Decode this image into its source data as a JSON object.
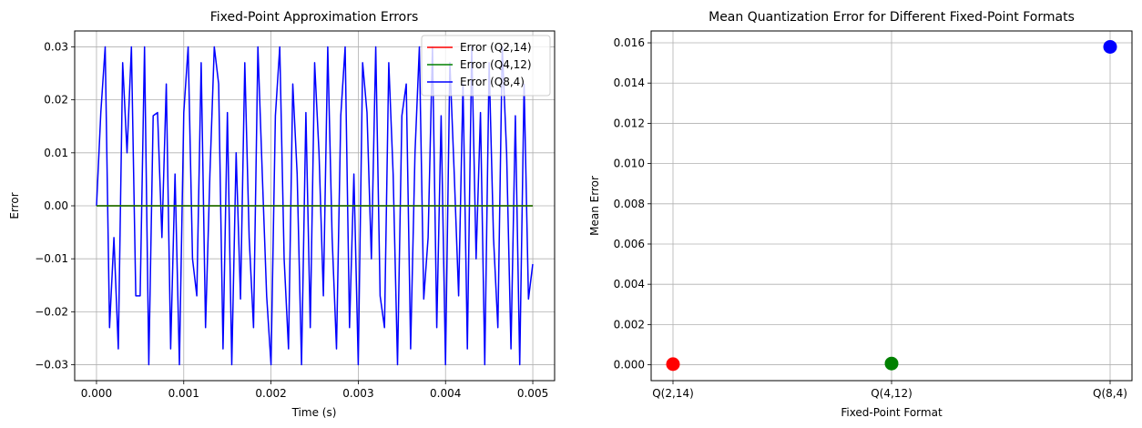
{
  "chart_data": [
    {
      "type": "line",
      "title": "Fixed-Point Approximation Errors",
      "xlabel": "Time (s)",
      "ylabel": "Error",
      "xlim": [
        -0.00025,
        0.00525
      ],
      "ylim": [
        -0.033,
        0.033
      ],
      "xticks": [
        "0.000",
        "0.001",
        "0.002",
        "0.003",
        "0.004",
        "0.005"
      ],
      "xtick_values": [
        0,
        0.001,
        0.002,
        0.003,
        0.004,
        0.005
      ],
      "yticks": [
        "−0.03",
        "−0.02",
        "−0.01",
        "0.00",
        "0.01",
        "0.02",
        "0.03"
      ],
      "ytick_values": [
        -0.03,
        -0.02,
        -0.01,
        0,
        0.01,
        0.02,
        0.03
      ],
      "grid": true,
      "legend_position": "top-right",
      "series": [
        {
          "name": "Error (Q2,14)",
          "color": "#ff0000",
          "x": [
            0,
            0.005
          ],
          "y": [
            0,
            0
          ]
        },
        {
          "name": "Error (Q4,12)",
          "color": "#008000",
          "x": [
            0,
            0.005
          ],
          "y": [
            0,
            0
          ]
        },
        {
          "name": "Error (Q8,4)",
          "color": "#0000ff",
          "x": [
            0,
            5e-05,
            0.0001,
            0.00015,
            0.0002,
            0.00025,
            0.0003,
            0.00035,
            0.0004,
            0.00045,
            0.0005,
            0.00055,
            0.0006,
            0.00065,
            0.0007,
            0.00075,
            0.0008,
            0.00085,
            0.0009,
            0.00095,
            0.001,
            0.00105,
            0.0011,
            0.00115,
            0.0012,
            0.00125,
            0.0013,
            0.00135,
            0.0014,
            0.00145,
            0.0015,
            0.00155,
            0.0016,
            0.00165,
            0.0017,
            0.00175,
            0.0018,
            0.00185,
            0.0019,
            0.00195,
            0.002,
            0.00205,
            0.0021,
            0.00215,
            0.0022,
            0.00225,
            0.0023,
            0.00235,
            0.0024,
            0.00245,
            0.0025,
            0.00255,
            0.0026,
            0.00265,
            0.0027,
            0.00275,
            0.0028,
            0.00285,
            0.0029,
            0.00295,
            0.003,
            0.00305,
            0.0031,
            0.00315,
            0.0032,
            0.00325,
            0.0033,
            0.00335,
            0.0034,
            0.00345,
            0.0035,
            0.00355,
            0.0036,
            0.00365,
            0.0037,
            0.00375,
            0.0038,
            0.00385,
            0.0039,
            0.00395,
            0.004,
            0.00405,
            0.0041,
            0.00415,
            0.0042,
            0.00425,
            0.0043,
            0.00435,
            0.0044,
            0.00445,
            0.0045,
            0.00455,
            0.0046,
            0.00465,
            0.0047,
            0.00475,
            0.0048,
            0.00485,
            0.0049,
            0.00495,
            0.005
          ],
          "y": [
            0,
            0.0176,
            0.03,
            -0.023,
            -0.006,
            -0.027,
            0.027,
            0.01,
            0.03,
            -0.017,
            -0.017,
            0.03,
            -0.03,
            0.017,
            0.0176,
            -0.006,
            0.023,
            -0.027,
            0.006,
            -0.03,
            0.0176,
            0.03,
            -0.01,
            -0.017,
            0.027,
            -0.023,
            0.006,
            0.03,
            0.023,
            -0.027,
            0.0176,
            -0.03,
            0.01,
            -0.0176,
            0.027,
            -0.006,
            -0.023,
            0.03,
            0.006,
            -0.017,
            -0.03,
            0.017,
            0.03,
            -0.01,
            -0.027,
            0.023,
            0.006,
            -0.03,
            0.0176,
            -0.023,
            0.027,
            0.01,
            -0.017,
            0.03,
            -0.006,
            -0.027,
            0.017,
            0.03,
            -0.023,
            0.006,
            -0.03,
            0.027,
            0.0176,
            -0.01,
            0.03,
            -0.017,
            -0.023,
            0.027,
            0.006,
            -0.03,
            0.017,
            0.023,
            -0.027,
            0.01,
            0.03,
            -0.0176,
            -0.006,
            0.03,
            -0.023,
            0.017,
            -0.03,
            0.027,
            0.006,
            -0.017,
            0.023,
            -0.027,
            0.03,
            -0.01,
            0.0176,
            -0.03,
            0.027,
            -0.006,
            -0.023,
            0.03,
            0.01,
            -0.027,
            0.017,
            -0.03,
            0.023,
            -0.0176,
            -0.011
          ]
        }
      ]
    },
    {
      "type": "scatter",
      "title": "Mean Quantization Error for Different Fixed-Point Formats",
      "xlabel": "Fixed-Point Format",
      "ylabel": "Mean Error",
      "categories": [
        "Q(2,14)",
        "Q(4,12)",
        "Q(8,4)"
      ],
      "values": [
        3e-05,
        6e-05,
        0.0158
      ],
      "colors": [
        "#ff0000",
        "#008000",
        "#0000ff"
      ],
      "ylim": [
        -0.00079,
        0.01659
      ],
      "yticks": [
        "0.000",
        "0.002",
        "0.004",
        "0.006",
        "0.008",
        "0.010",
        "0.012",
        "0.014",
        "0.016"
      ],
      "ytick_values": [
        0,
        0.002,
        0.004,
        0.006,
        0.008,
        0.01,
        0.012,
        0.014,
        0.016
      ],
      "grid": true
    }
  ]
}
